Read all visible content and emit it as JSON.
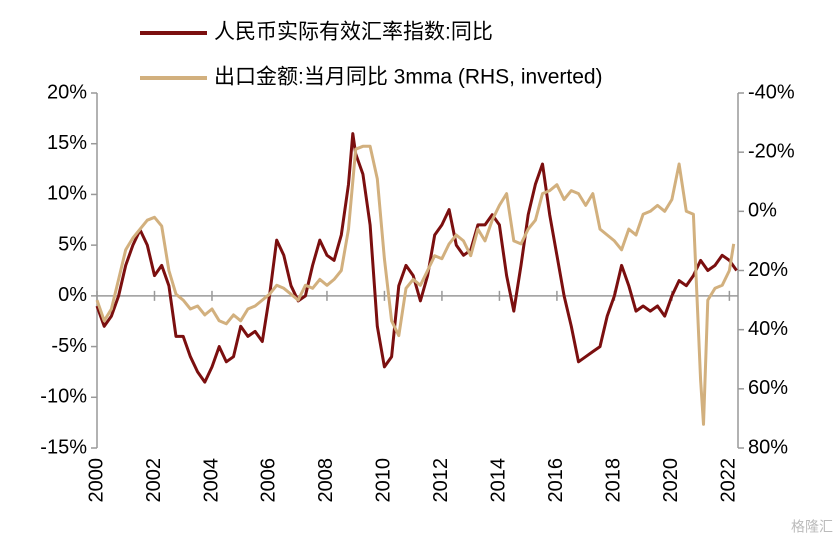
{
  "chart_data": {
    "type": "line",
    "legend_position": "top",
    "watermark": "格隆汇",
    "xlim": [
      2000,
      2022.3
    ],
    "xticks": [
      2000,
      2002,
      2004,
      2006,
      2008,
      2010,
      2012,
      2014,
      2016,
      2018,
      2020,
      2022
    ],
    "ylim": [
      -15,
      20
    ],
    "yticks": [
      {
        "value": 20,
        "label": "20%"
      },
      {
        "value": 15,
        "label": "15%"
      },
      {
        "value": 10,
        "label": "10%"
      },
      {
        "value": 5,
        "label": "5%"
      },
      {
        "value": 0,
        "label": "0%"
      },
      {
        "value": -5,
        "label": "-5%"
      },
      {
        "value": -10,
        "label": "-10%"
      },
      {
        "value": -15,
        "label": "-15%"
      }
    ],
    "y2lim": [
      -40,
      80
    ],
    "y2_inverted": true,
    "y2ticks": [
      {
        "value": -40,
        "label": "-40%"
      },
      {
        "value": -20,
        "label": "-20%"
      },
      {
        "value": 0,
        "label": "0%"
      },
      {
        "value": 20,
        "label": "20%"
      },
      {
        "value": 40,
        "label": "40%"
      },
      {
        "value": 60,
        "label": "60%"
      },
      {
        "value": 80,
        "label": "80%"
      }
    ],
    "series": [
      {
        "name": "人民币实际有效汇率指数:同比",
        "color": "#7b0f0f",
        "axis": "y",
        "x": [
          2000,
          2000.25,
          2000.5,
          2000.75,
          2001,
          2001.25,
          2001.5,
          2001.75,
          2002,
          2002.25,
          2002.5,
          2002.75,
          2003,
          2003.25,
          2003.5,
          2003.75,
          2004,
          2004.25,
          2004.5,
          2004.75,
          2005,
          2005.25,
          2005.5,
          2005.75,
          2006,
          2006.25,
          2006.5,
          2006.75,
          2007,
          2007.25,
          2007.5,
          2007.75,
          2008,
          2008.25,
          2008.5,
          2008.75,
          2008.9,
          2009,
          2009.25,
          2009.5,
          2009.75,
          2010,
          2010.25,
          2010.5,
          2010.75,
          2011,
          2011.25,
          2011.5,
          2011.75,
          2012,
          2012.25,
          2012.5,
          2012.75,
          2013,
          2013.25,
          2013.5,
          2013.75,
          2014,
          2014.25,
          2014.5,
          2014.75,
          2015,
          2015.25,
          2015.5,
          2015.75,
          2016,
          2016.25,
          2016.5,
          2016.75,
          2017,
          2017.25,
          2017.5,
          2017.75,
          2018,
          2018.25,
          2018.5,
          2018.75,
          2019,
          2019.25,
          2019.5,
          2019.75,
          2020,
          2020.25,
          2020.5,
          2020.75,
          2021,
          2021.25,
          2021.5,
          2021.75,
          2022,
          2022.25
        ],
        "values": [
          -1,
          -3,
          -2,
          0,
          3,
          5,
          6.5,
          5,
          2,
          3,
          1,
          -4,
          -4,
          -6,
          -7.5,
          -8.5,
          -7,
          -5,
          -6.5,
          -6,
          -3,
          -4,
          -3.5,
          -4.5,
          0,
          5.5,
          4,
          1,
          -0.5,
          0,
          3,
          5.5,
          4,
          3.5,
          6,
          11,
          16,
          14,
          12,
          7,
          -3,
          -7,
          -6,
          1,
          3,
          2,
          -0.5,
          2,
          6,
          7,
          8.5,
          5,
          4,
          4.5,
          7,
          7,
          8,
          7,
          2,
          -1.5,
          3,
          8,
          11,
          13,
          8,
          4,
          0,
          -3,
          -6.5,
          -6,
          -5.5,
          -5,
          -2,
          0,
          3,
          1,
          -1.5,
          -1,
          -1.5,
          -1,
          -2,
          0,
          1.5,
          1,
          2,
          3.5,
          2.5,
          3,
          4,
          3.5,
          2.5
        ]
      },
      {
        "name": "出口金额:当月同比 3mma (RHS, inverted)",
        "color": "#d2b07e",
        "axis": "y2",
        "x": [
          2000,
          2000.25,
          2000.5,
          2000.75,
          2001,
          2001.25,
          2001.5,
          2001.75,
          2002,
          2002.25,
          2002.5,
          2002.75,
          2003,
          2003.25,
          2003.5,
          2003.75,
          2004,
          2004.25,
          2004.5,
          2004.75,
          2005,
          2005.25,
          2005.5,
          2005.75,
          2006,
          2006.25,
          2006.5,
          2006.75,
          2007,
          2007.25,
          2007.5,
          2007.75,
          2008,
          2008.25,
          2008.5,
          2008.75,
          2009,
          2009.25,
          2009.5,
          2009.75,
          2010,
          2010.25,
          2010.5,
          2010.75,
          2011,
          2011.25,
          2011.5,
          2011.75,
          2012,
          2012.25,
          2012.5,
          2012.75,
          2013,
          2013.25,
          2013.5,
          2013.75,
          2014,
          2014.25,
          2014.5,
          2014.75,
          2015,
          2015.25,
          2015.5,
          2015.75,
          2016,
          2016.25,
          2016.5,
          2016.75,
          2017,
          2017.25,
          2017.5,
          2017.75,
          2018,
          2018.25,
          2018.5,
          2018.75,
          2019,
          2019.25,
          2019.5,
          2019.75,
          2020,
          2020.25,
          2020.5,
          2020.75,
          2021,
          2021.1,
          2021.25,
          2021.5,
          2021.75,
          2022,
          2022.15
        ],
        "values": [
          30,
          37,
          33,
          23,
          13,
          9,
          6,
          3,
          2,
          5,
          20,
          28,
          30,
          33,
          32,
          35,
          33,
          37,
          38,
          35,
          37,
          33,
          32,
          30,
          28,
          25,
          26,
          28,
          30,
          25,
          26,
          23,
          25,
          23,
          20,
          6,
          -21,
          -22,
          -22,
          -11,
          16,
          37,
          42,
          26,
          23,
          25,
          20,
          15,
          16,
          11,
          8,
          10,
          15,
          6,
          10,
          3,
          -2,
          -6,
          10,
          11,
          6,
          3,
          -6,
          -7,
          -9,
          -4,
          -7,
          -6,
          -2,
          -6,
          6,
          8,
          10,
          13,
          6,
          8,
          1,
          0,
          -2,
          0,
          -4,
          -16,
          0,
          1,
          57,
          72,
          30,
          26,
          25,
          20,
          11
        ]
      }
    ]
  }
}
